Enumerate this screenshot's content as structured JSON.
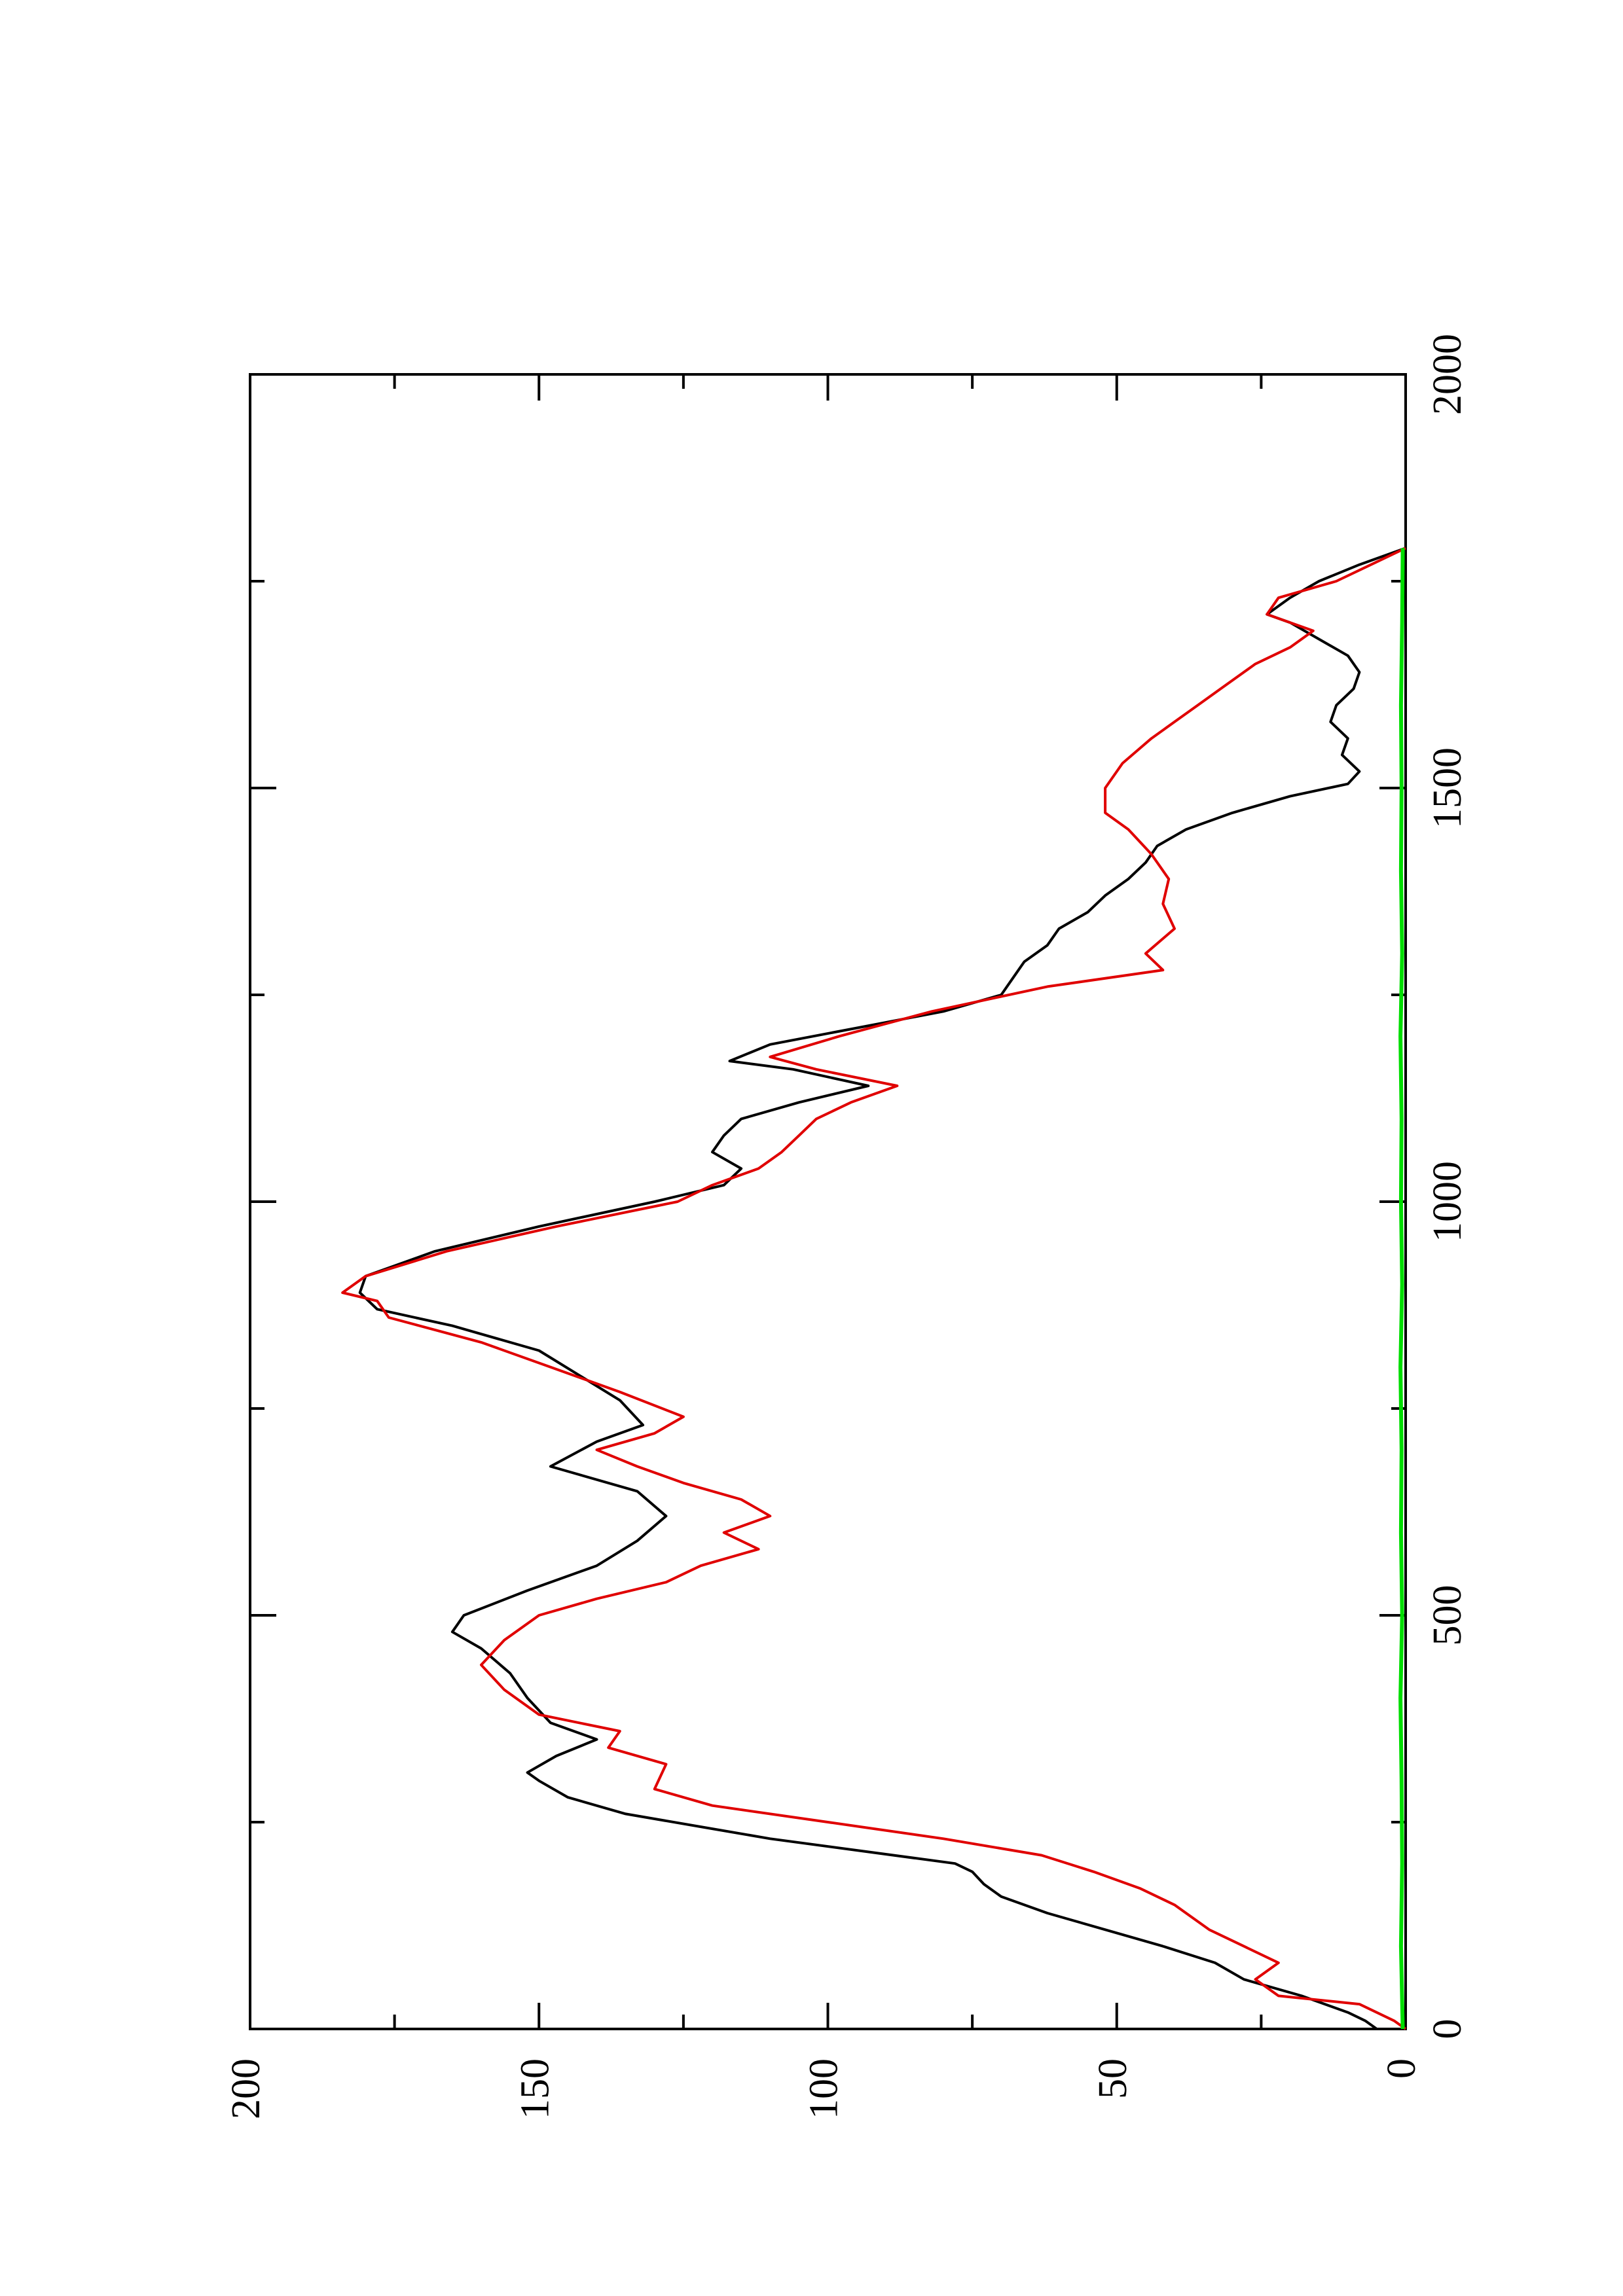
{
  "chart_data": {
    "type": "line",
    "orientation": "rotated-90-ccw",
    "title": "",
    "xlabel": "",
    "ylabel": "",
    "xlim": [
      0,
      2000
    ],
    "ylim": [
      0,
      200
    ],
    "x_ticks": [
      0,
      500,
      1000,
      1500,
      2000
    ],
    "y_ticks": [
      0,
      50,
      100,
      150,
      200
    ],
    "x_tick_labels": [
      "0",
      "500",
      "1000",
      "1500",
      "2000"
    ],
    "y_tick_labels": [
      "0",
      "50",
      "100",
      "150",
      "200"
    ],
    "grid": false,
    "series": [
      {
        "color": "#000000",
        "points": [
          [
            0,
            5
          ],
          [
            10,
            7
          ],
          [
            20,
            10
          ],
          [
            40,
            18
          ],
          [
            60,
            28
          ],
          [
            80,
            33
          ],
          [
            100,
            42
          ],
          [
            120,
            52
          ],
          [
            140,
            62
          ],
          [
            160,
            70
          ],
          [
            175,
            73
          ],
          [
            190,
            75
          ],
          [
            200,
            78
          ],
          [
            230,
            110
          ],
          [
            260,
            135
          ],
          [
            280,
            145
          ],
          [
            300,
            150
          ],
          [
            310,
            152
          ],
          [
            330,
            147
          ],
          [
            350,
            140
          ],
          [
            370,
            148
          ],
          [
            400,
            152
          ],
          [
            430,
            155
          ],
          [
            460,
            160
          ],
          [
            480,
            165
          ],
          [
            500,
            163
          ],
          [
            530,
            152
          ],
          [
            560,
            140
          ],
          [
            590,
            133
          ],
          [
            620,
            128
          ],
          [
            650,
            133
          ],
          [
            680,
            148
          ],
          [
            710,
            140
          ],
          [
            730,
            132
          ],
          [
            760,
            136
          ],
          [
            790,
            143
          ],
          [
            820,
            150
          ],
          [
            850,
            165
          ],
          [
            870,
            178
          ],
          [
            890,
            181
          ],
          [
            910,
            180
          ],
          [
            940,
            168
          ],
          [
            970,
            150
          ],
          [
            1000,
            130
          ],
          [
            1020,
            118
          ],
          [
            1040,
            115
          ],
          [
            1060,
            120
          ],
          [
            1080,
            118
          ],
          [
            1100,
            115
          ],
          [
            1120,
            105
          ],
          [
            1140,
            93
          ],
          [
            1160,
            106
          ],
          [
            1170,
            117
          ],
          [
            1190,
            110
          ],
          [
            1210,
            95
          ],
          [
            1230,
            80
          ],
          [
            1250,
            70
          ],
          [
            1270,
            68
          ],
          [
            1290,
            66
          ],
          [
            1310,
            62
          ],
          [
            1330,
            60
          ],
          [
            1350,
            55
          ],
          [
            1370,
            52
          ],
          [
            1390,
            48
          ],
          [
            1410,
            45
          ],
          [
            1430,
            43
          ],
          [
            1450,
            38
          ],
          [
            1470,
            30
          ],
          [
            1490,
            20
          ],
          [
            1505,
            10
          ],
          [
            1520,
            8
          ],
          [
            1540,
            11
          ],
          [
            1560,
            10
          ],
          [
            1580,
            13
          ],
          [
            1600,
            12
          ],
          [
            1620,
            9
          ],
          [
            1640,
            8
          ],
          [
            1660,
            10
          ],
          [
            1680,
            15
          ],
          [
            1700,
            20
          ],
          [
            1710,
            24
          ],
          [
            1730,
            20
          ],
          [
            1750,
            15
          ],
          [
            1770,
            8
          ],
          [
            1790,
            0
          ]
        ]
      },
      {
        "color": "#e00000",
        "points": [
          [
            0,
            0
          ],
          [
            10,
            2
          ],
          [
            30,
            8
          ],
          [
            40,
            22
          ],
          [
            60,
            26
          ],
          [
            80,
            22
          ],
          [
            100,
            28
          ],
          [
            120,
            34
          ],
          [
            150,
            40
          ],
          [
            170,
            46
          ],
          [
            190,
            54
          ],
          [
            210,
            63
          ],
          [
            230,
            80
          ],
          [
            250,
            100
          ],
          [
            270,
            120
          ],
          [
            290,
            130
          ],
          [
            320,
            128
          ],
          [
            340,
            138
          ],
          [
            360,
            136
          ],
          [
            380,
            150
          ],
          [
            410,
            156
          ],
          [
            440,
            160
          ],
          [
            470,
            156
          ],
          [
            500,
            150
          ],
          [
            520,
            140
          ],
          [
            540,
            128
          ],
          [
            560,
            122
          ],
          [
            580,
            112
          ],
          [
            600,
            118
          ],
          [
            620,
            110
          ],
          [
            640,
            115
          ],
          [
            660,
            125
          ],
          [
            680,
            133
          ],
          [
            700,
            140
          ],
          [
            720,
            130
          ],
          [
            740,
            125
          ],
          [
            770,
            136
          ],
          [
            800,
            148
          ],
          [
            830,
            160
          ],
          [
            860,
            176
          ],
          [
            880,
            178
          ],
          [
            890,
            184
          ],
          [
            910,
            180
          ],
          [
            940,
            166
          ],
          [
            970,
            147
          ],
          [
            1000,
            126
          ],
          [
            1020,
            120
          ],
          [
            1040,
            112
          ],
          [
            1060,
            108
          ],
          [
            1080,
            105
          ],
          [
            1100,
            102
          ],
          [
            1120,
            96
          ],
          [
            1140,
            88
          ],
          [
            1160,
            102
          ],
          [
            1175,
            110
          ],
          [
            1200,
            98
          ],
          [
            1230,
            82
          ],
          [
            1260,
            62
          ],
          [
            1280,
            42
          ],
          [
            1300,
            45
          ],
          [
            1330,
            40
          ],
          [
            1360,
            42
          ],
          [
            1390,
            41
          ],
          [
            1420,
            44
          ],
          [
            1450,
            48
          ],
          [
            1470,
            52
          ],
          [
            1500,
            52
          ],
          [
            1530,
            49
          ],
          [
            1560,
            44
          ],
          [
            1580,
            40
          ],
          [
            1600,
            36
          ],
          [
            1620,
            32
          ],
          [
            1650,
            26
          ],
          [
            1670,
            20
          ],
          [
            1690,
            16
          ],
          [
            1710,
            24
          ],
          [
            1730,
            22
          ],
          [
            1750,
            12
          ],
          [
            1770,
            6
          ],
          [
            1790,
            0
          ]
        ]
      },
      {
        "color": "#00dd00",
        "points": [
          [
            0,
            0.5
          ],
          [
            100,
            0.8
          ],
          [
            200,
            0.6
          ],
          [
            300,
            0.7
          ],
          [
            400,
            0.9
          ],
          [
            500,
            0.6
          ],
          [
            600,
            0.8
          ],
          [
            700,
            0.7
          ],
          [
            800,
            0.9
          ],
          [
            900,
            0.6
          ],
          [
            1000,
            0.8
          ],
          [
            1100,
            0.7
          ],
          [
            1200,
            0.9
          ],
          [
            1300,
            0.6
          ],
          [
            1400,
            0.8
          ],
          [
            1500,
            0.7
          ],
          [
            1600,
            0.8
          ],
          [
            1700,
            0.6
          ],
          [
            1790,
            0.5
          ]
        ]
      }
    ]
  }
}
